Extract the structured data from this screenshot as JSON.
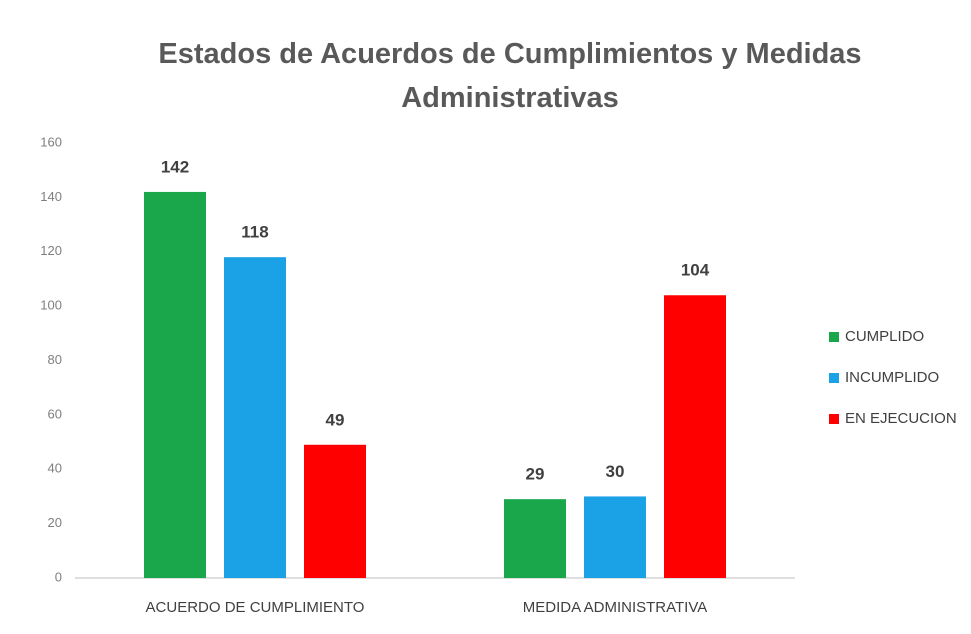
{
  "chart_data": {
    "type": "bar",
    "title": "Estados de Acuerdos de Cumplimientos y Medidas Administrativas",
    "categories": [
      "ACUERDO DE CUMPLIMIENTO",
      "MEDIDA ADMINISTRATIVA"
    ],
    "series": [
      {
        "name": "CUMPLIDO",
        "color": "#1aa64b",
        "values": [
          142,
          29
        ]
      },
      {
        "name": "INCUMPLIDO",
        "color": "#1ba1e6",
        "values": [
          118,
          30
        ]
      },
      {
        "name": "EN EJECUCION",
        "color": "#ff0000",
        "values": [
          49,
          104
        ]
      }
    ],
    "ylim": [
      0,
      160
    ],
    "yticks": [
      0,
      20,
      40,
      60,
      80,
      100,
      120,
      140,
      160
    ],
    "grid": false,
    "legend": "right"
  }
}
